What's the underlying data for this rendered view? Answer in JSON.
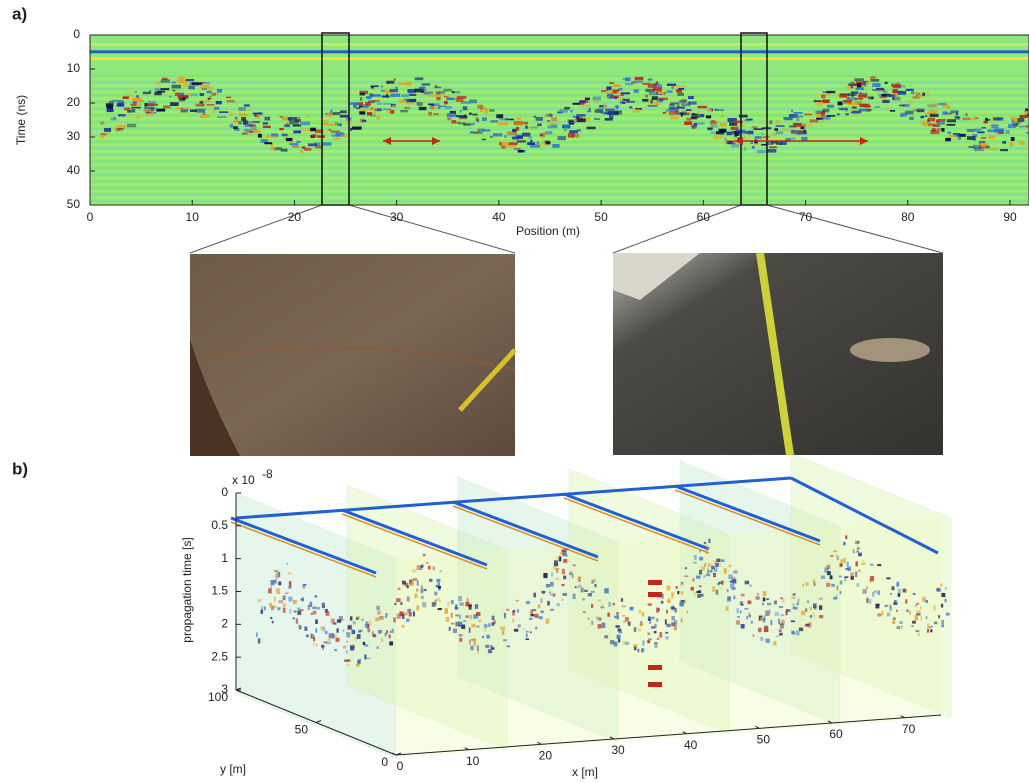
{
  "panel_a": {
    "label": "a)",
    "y_label": "Time (ns)",
    "x_label": "Position (m)",
    "ylim": [
      0,
      50
    ],
    "yticks": [
      0,
      10,
      20,
      30,
      40,
      50
    ],
    "xlim": [
      0,
      92
    ],
    "xticks": [
      0,
      10,
      20,
      30,
      40,
      50,
      60,
      70,
      80,
      90
    ]
  },
  "panel_b": {
    "label": "b)",
    "z_label": "propagation time [s]",
    "z_multiplier": "x 10",
    "z_exponent": "-8",
    "zlim": [
      0,
      3
    ],
    "zticks": [
      0,
      0.5,
      1,
      1.5,
      2,
      2.5,
      3
    ],
    "y_label": "y [m]",
    "ylim": [
      0,
      100
    ],
    "yticks": [
      0,
      50,
      100
    ],
    "x_label": "x [m]",
    "xlim": [
      0,
      75
    ],
    "xticks": [
      0,
      10,
      20,
      30,
      40,
      50,
      60,
      70
    ]
  }
}
